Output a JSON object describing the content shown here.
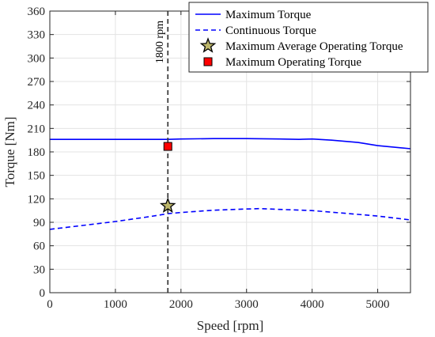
{
  "chart_data": {
    "type": "line",
    "xlabel": "Speed [rpm]",
    "ylabel": "Torque [Nm]",
    "xlim": [
      0,
      5500
    ],
    "ylim": [
      0,
      360
    ],
    "xticks": [
      0,
      1000,
      2000,
      3000,
      4000,
      5000
    ],
    "yticks": [
      0,
      30,
      60,
      90,
      120,
      150,
      180,
      210,
      240,
      270,
      300,
      330,
      360
    ],
    "grid": true,
    "legend_position": "top-right",
    "series": [
      {
        "name": "Maximum Torque",
        "style": "solid",
        "color": "#0000ff",
        "x": [
          0,
          500,
          1000,
          1500,
          1800,
          2000,
          2500,
          3000,
          3500,
          3800,
          4000,
          4300,
          4700,
          5000,
          5500
        ],
        "y": [
          196,
          196,
          196,
          196,
          196,
          196.5,
          197,
          197,
          196.5,
          196,
          196.5,
          195,
          192,
          188,
          184
        ]
      },
      {
        "name": "Continuous Torque",
        "style": "dashed",
        "color": "#0000ff",
        "x": [
          0,
          500,
          1000,
          1500,
          1800,
          2000,
          2500,
          3000,
          3200,
          3500,
          4000,
          4500,
          5000,
          5500
        ],
        "y": [
          81,
          86,
          91,
          97,
          101,
          102.5,
          105.5,
          107,
          107.5,
          106.5,
          105,
          101.5,
          98,
          93
        ]
      }
    ],
    "markers": [
      {
        "name": "Maximum Average Operating Torque",
        "shape": "star",
        "color": "#bdb76b",
        "x": 1800,
        "y": 111
      },
      {
        "name": "Maximum Operating Torque",
        "shape": "square",
        "color": "#ff0000",
        "x": 1800,
        "y": 187
      }
    ],
    "reference_line": {
      "x": 1800,
      "label": "1800 rpm",
      "style": "dashed",
      "color": "#404040"
    }
  }
}
